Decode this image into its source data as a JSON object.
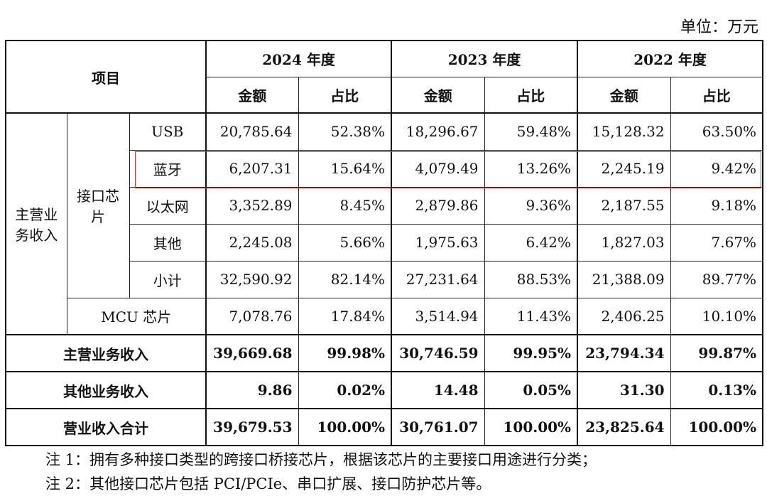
{
  "unit_label": "单位：万元",
  "header": {
    "item": "项目",
    "years": [
      "2024 年度",
      "2023 年度",
      "2022 年度"
    ],
    "amount": "金额",
    "ratio": "占比"
  },
  "groups": {
    "main": "主营业务收入",
    "main_lines": [
      "主营业",
      "务收入"
    ],
    "iface": "接口芯片",
    "iface_lines": [
      "接口芯",
      "片"
    ]
  },
  "rows": [
    {
      "label": "USB",
      "v": [
        "20,785.64",
        "52.38%",
        "18,296.67",
        "59.48%",
        "15,128.32",
        "63.50%"
      ]
    },
    {
      "label": "蓝牙",
      "v": [
        "6,207.31",
        "15.64%",
        "4,079.49",
        "13.26%",
        "2,245.19",
        "9.42%"
      ]
    },
    {
      "label": "以太网",
      "v": [
        "3,352.89",
        "8.45%",
        "2,879.86",
        "9.36%",
        "2,187.55",
        "9.18%"
      ]
    },
    {
      "label": "其他",
      "v": [
        "2,245.08",
        "5.66%",
        "1,975.63",
        "6.42%",
        "1,827.03",
        "7.67%"
      ]
    },
    {
      "label": "小计",
      "v": [
        "32,590.92",
        "82.14%",
        "27,231.64",
        "88.53%",
        "21,388.09",
        "89.77%"
      ]
    },
    {
      "label": "MCU 芯片",
      "v": [
        "7,078.76",
        "17.84%",
        "3,514.94",
        "11.43%",
        "2,406.25",
        "10.10%"
      ]
    },
    {
      "label": "主营业务收入",
      "v": [
        "39,669.68",
        "99.98%",
        "30,746.59",
        "99.95%",
        "23,794.34",
        "99.87%"
      ]
    },
    {
      "label": "其他业务收入",
      "v": [
        "9.86",
        "0.02%",
        "14.48",
        "0.05%",
        "31.30",
        "0.13%"
      ]
    },
    {
      "label": "营业收入合计",
      "v": [
        "39,679.53",
        "100.00%",
        "30,761.07",
        "100.00%",
        "23,825.64",
        "100.00%"
      ]
    }
  ],
  "notes": [
    "注 1：拥有多种接口类型的跨接口桥接芯片，根据该芯片的主要接口用途进行分类；",
    "注 2：其他接口芯片包括 PCI/PCIe、串口扩展、接口防护芯片等。"
  ]
}
